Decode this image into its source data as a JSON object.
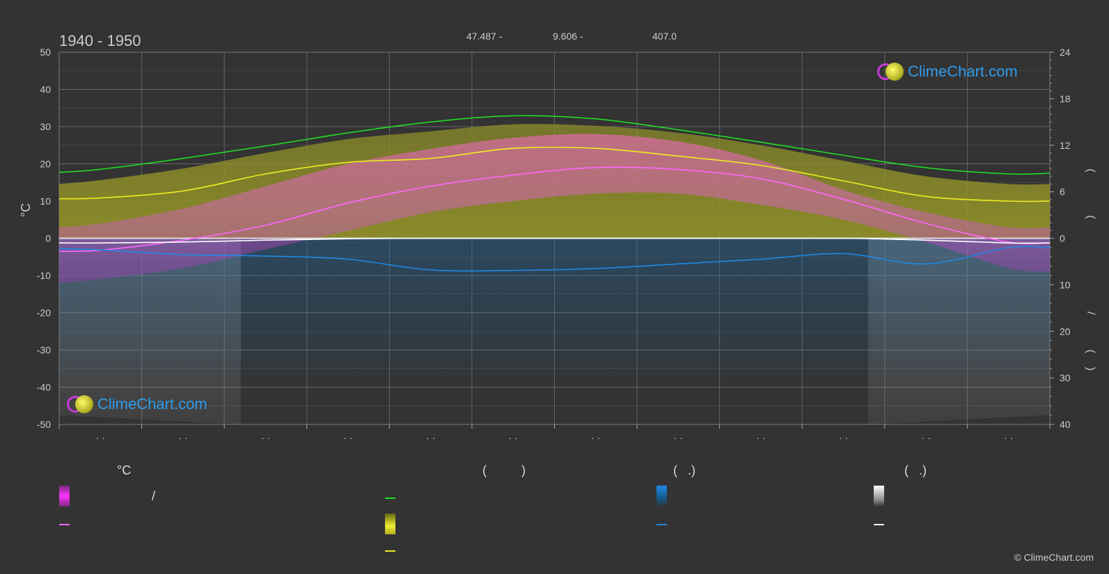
{
  "title": "1940 - 1950",
  "header_info": {
    "lat": "47.487 -",
    "lon": "9.606 -",
    "elevation": "407.0"
  },
  "logo_text": "ClimeChart.com",
  "copyright": "© ClimeChart.com",
  "left_axis_unit": "°C",
  "right_axis_marks": [
    "(",
    ")",
    "(",
    ")",
    "/",
    "(",
    "·",
    ")"
  ],
  "month_tick_label": "· ·",
  "legend": {
    "headers": [
      "°C",
      "(          )",
      "(   .)",
      "(   .)"
    ],
    "slash": "/"
  },
  "colors": {
    "background": "#333333",
    "daylight": "#22dd22",
    "sunshine": "#eeee22",
    "temp_mean": "#ff66ff",
    "temp_band": "#e23fe0",
    "rain": "#1e88e5",
    "snow": "#ffffff",
    "grid": "#777777"
  },
  "chart_data": {
    "type": "line",
    "title": "1940 - 1950",
    "left_axis": {
      "ylim": [
        -50,
        50
      ],
      "ticks": [
        50,
        40,
        30,
        20,
        10,
        0,
        -10,
        -20,
        -30,
        -40,
        -50
      ]
    },
    "right_axis": {
      "upper": {
        "ylim": [
          0,
          24
        ],
        "ticks": [
          24,
          18,
          12,
          6,
          0
        ]
      },
      "lower": {
        "ylim": [
          0,
          40
        ],
        "ticks": [
          10,
          20,
          30,
          40
        ]
      }
    },
    "months": 12,
    "x": [
      0,
      0.5,
      1.5,
      2.5,
      3.5,
      4.5,
      5.5,
      6.5,
      7.5,
      8.5,
      9.5,
      10.5,
      11.5,
      12
    ],
    "series": [
      {
        "key": "daylight",
        "axis": "upper_hours",
        "values": [
          8.5,
          8.9,
          10.3,
          11.9,
          13.6,
          15.0,
          15.8,
          15.4,
          14.0,
          12.4,
          10.7,
          9.1,
          8.3,
          8.4
        ]
      },
      {
        "key": "sunshine",
        "axis": "upper_hours",
        "values": [
          5.1,
          5.2,
          6.1,
          8.3,
          9.8,
          10.3,
          11.6,
          11.6,
          10.6,
          9.4,
          7.4,
          5.4,
          4.8,
          4.8
        ]
      },
      {
        "key": "temp_mean",
        "axis": "celsius",
        "values": [
          -3.5,
          -3.2,
          -0.5,
          3.5,
          9.5,
          14.0,
          17.0,
          19.0,
          18.5,
          16.0,
          10.5,
          4.0,
          -1.0,
          -1.2
        ]
      },
      {
        "key": "rain",
        "axis": "lower_mm",
        "values": [
          2.2,
          2.5,
          3.5,
          3.8,
          4.5,
          6.8,
          6.9,
          6.5,
          5.5,
          4.5,
          3.3,
          5.5,
          2.0,
          2.0
        ]
      },
      {
        "key": "snow",
        "axis": "lower_mm",
        "values": [
          1.0,
          1.0,
          0.8,
          0.4,
          0.1,
          0.0,
          0.0,
          0.0,
          0.0,
          0.0,
          0.0,
          0.4,
          1.0,
          1.0
        ]
      }
    ],
    "bands": {
      "sunshine_band_top_hours": [
        7.0,
        7.5,
        9.0,
        11.0,
        12.8,
        13.8,
        14.7,
        14.5,
        13.6,
        12.0,
        10.0,
        8.0,
        7.0,
        7.0
      ],
      "temp_band_low_c": [
        -12,
        -11,
        -8,
        -3,
        2,
        7,
        10,
        12,
        12,
        9,
        5,
        -1,
        -8,
        -9
      ],
      "temp_band_high_c": [
        3,
        4,
        8,
        14,
        20,
        24,
        27,
        28,
        26,
        21,
        13,
        7,
        3,
        3
      ]
    }
  }
}
